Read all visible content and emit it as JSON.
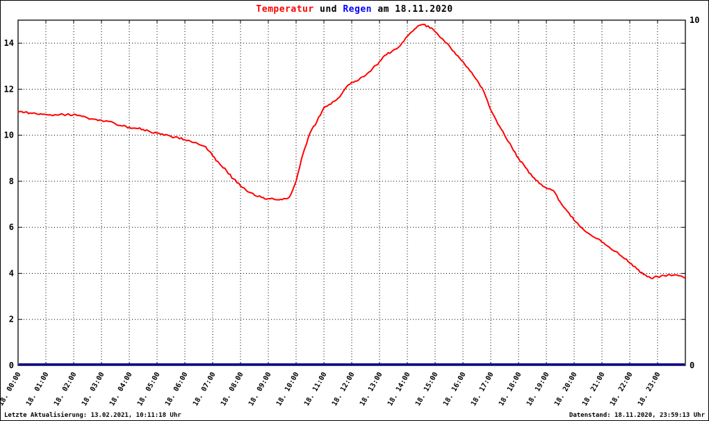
{
  "title": {
    "part_temperature": "Temperatur",
    "part_connector": "und",
    "part_rain": "Regen",
    "part_date": "am 18.11.2020"
  },
  "footer": {
    "left": "Letzte Aktualisierung: 13.02.2021, 10:11:18 Uhr",
    "right": "Datenstand: 18.11.2020, 23:59:13 Uhr"
  },
  "chart_data": {
    "type": "line",
    "title": "Temperatur und Regen am 18.11.2020",
    "xlabel": "",
    "ylabel_left": "",
    "ylabel_right": "",
    "xlim": [
      0,
      24
    ],
    "ylim_left": [
      0,
      15
    ],
    "ylim_right": [
      0,
      10
    ],
    "yticks_left": [
      0,
      2,
      4,
      6,
      8,
      10,
      12,
      14
    ],
    "yticks_right": [
      0,
      10
    ],
    "grid": true,
    "legend": "none",
    "colors": {
      "temperature": "#ff0000",
      "rain": "#000099",
      "grid": "#000000",
      "frame": "#000000"
    },
    "x_tick_labels": [
      "18. 00:00",
      "18. 01:00",
      "18. 02:00",
      "18. 03:00",
      "18. 04:00",
      "18. 05:00",
      "18. 06:00",
      "18. 07:00",
      "18. 08:00",
      "18. 09:00",
      "18. 10:00",
      "18. 11:00",
      "18. 12:00",
      "18. 13:00",
      "18. 14:00",
      "18. 15:00",
      "18. 16:00",
      "18. 17:00",
      "18. 18:00",
      "18. 19:00",
      "18. 20:00",
      "18. 21:00",
      "18. 22:00",
      "18. 23:00"
    ],
    "series": [
      {
        "name": "Temperatur",
        "axis": "left",
        "color": "#ff0000",
        "x_start": 0,
        "x_step": 0.25,
        "values": [
          11.0,
          11.0,
          10.95,
          10.9,
          10.9,
          10.85,
          10.9,
          10.9,
          10.9,
          10.85,
          10.75,
          10.7,
          10.65,
          10.6,
          10.5,
          10.4,
          10.35,
          10.3,
          10.25,
          10.15,
          10.1,
          10.0,
          9.95,
          9.9,
          9.8,
          9.7,
          9.6,
          9.5,
          9.1,
          8.75,
          8.45,
          8.1,
          7.8,
          7.55,
          7.4,
          7.3,
          7.25,
          7.2,
          7.2,
          7.3,
          8.0,
          9.2,
          10.1,
          10.6,
          11.2,
          11.35,
          11.6,
          12.0,
          12.3,
          12.4,
          12.6,
          12.9,
          13.2,
          13.5,
          13.7,
          13.9,
          14.3,
          14.6,
          14.8,
          14.75,
          14.5,
          14.2,
          13.9,
          13.5,
          13.2,
          12.8,
          12.4,
          11.9,
          11.1,
          10.5,
          10.0,
          9.5,
          9.0,
          8.6,
          8.2,
          7.9,
          7.7,
          7.6,
          7.1,
          6.7,
          6.3,
          6.0,
          5.75,
          5.55,
          5.35,
          5.15,
          4.95,
          4.7,
          4.45,
          4.2,
          3.95,
          3.8,
          3.85,
          3.9,
          3.9,
          3.9,
          3.8
        ]
      },
      {
        "name": "Regen",
        "axis": "right",
        "color": "#000099",
        "constant_value": 0
      }
    ]
  }
}
